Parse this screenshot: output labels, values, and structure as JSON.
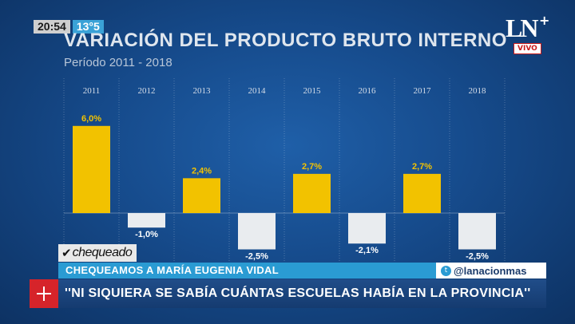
{
  "hud": {
    "time": "20:54",
    "temperature": "13°5"
  },
  "logo": {
    "text": "LN",
    "plus": "+",
    "live": "VIVO"
  },
  "chart_data": {
    "type": "bar",
    "title": "VARIACIÓN DEL PRODUCTO BRUTO INTERNO",
    "subtitle": "Período 2011 - 2018",
    "categories": [
      "2011",
      "2012",
      "2013",
      "2014",
      "2015",
      "2016",
      "2017",
      "2018"
    ],
    "values": [
      6.0,
      -1.0,
      2.4,
      -2.5,
      2.7,
      -2.1,
      2.7,
      -2.5
    ],
    "labels": [
      "6,0%",
      "-1,0%",
      "2,4%",
      "-2,5%",
      "2,7%",
      "-2,1%",
      "2,7%",
      "-2,5%"
    ],
    "positive_color": "#f2c200",
    "negative_color": "#e9ecef",
    "xlabel": "",
    "ylabel": ""
  },
  "lower_third": {
    "tag": "chequeado",
    "ticker": "CHEQUEAMOS A MARÍA EUGENIA VIDAL",
    "handle": "@lanacionmas",
    "headline": "''NI SIQUIERA SE SABÍA CUÁNTAS ESCUELAS HABÍA EN LA PROVINCIA''"
  }
}
